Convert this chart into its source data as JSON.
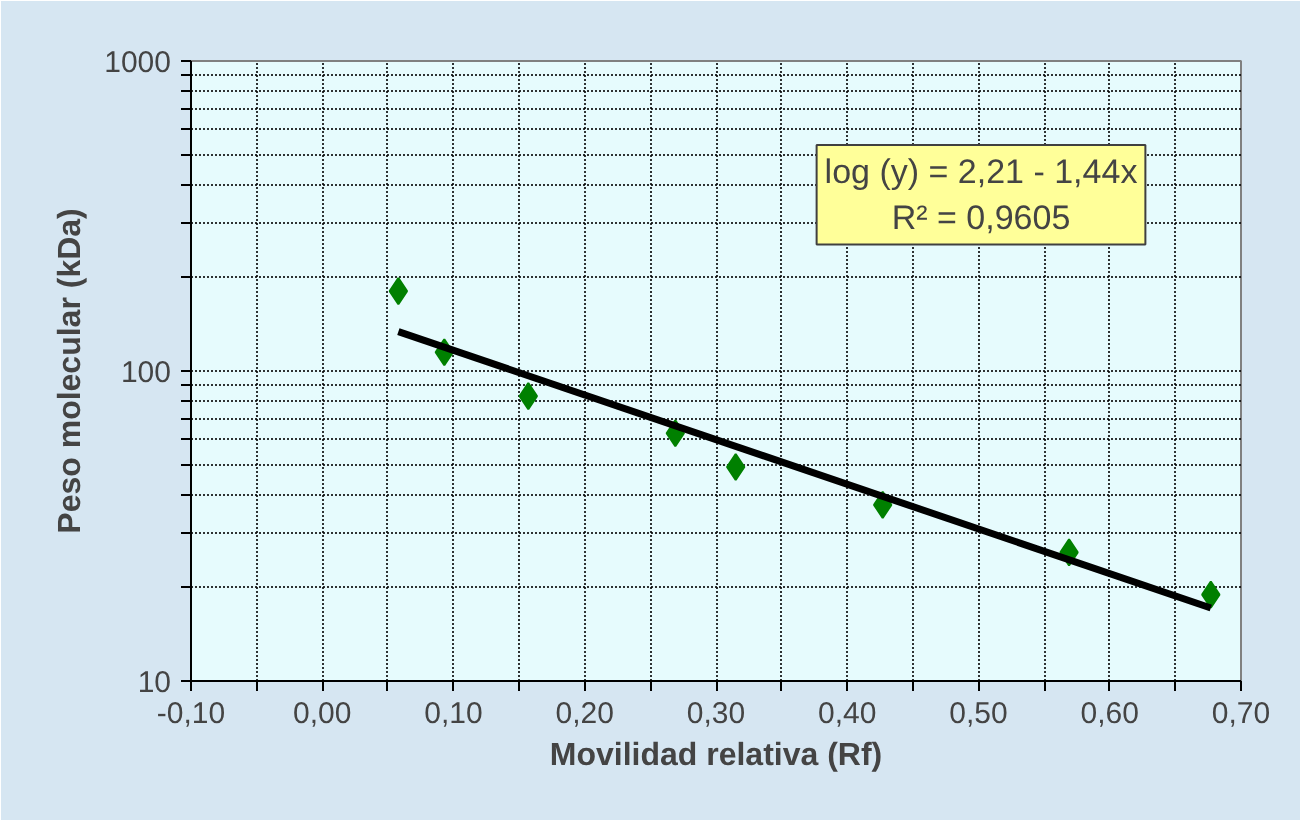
{
  "chart_data": {
    "type": "scatter",
    "xlabel": "Movilidad relativa (Rf)",
    "ylabel": "Peso molecular (kDa)",
    "series": [
      {
        "color": "#008000",
        "marker": "diamond",
        "x": [
          0.058,
          0.093,
          0.157,
          0.269,
          0.315,
          0.427,
          0.569,
          0.677
        ],
        "values": [
          181,
          115,
          83,
          63,
          49,
          37,
          26,
          19
        ]
      },
      {
        "type": "line",
        "color": "#000000",
        "x": [
          0.058,
          0.677
        ],
        "values": [
          134,
          17.2
        ]
      }
    ],
    "log": "y",
    "xlim": [
      -0.1,
      0.7
    ],
    "ylim": [
      10,
      1000
    ],
    "xticks": [
      {
        "value": -0.1,
        "label": "-0,10"
      },
      {
        "value": -0.05,
        "label": null
      },
      {
        "value": 0,
        "label": "0,00"
      },
      {
        "value": 0.05,
        "label": null
      },
      {
        "value": 0.1,
        "label": "0,10"
      },
      {
        "value": 0.15,
        "label": null
      },
      {
        "value": 0.2,
        "label": "0,20"
      },
      {
        "value": 0.25,
        "label": null
      },
      {
        "value": 0.3,
        "label": "0,30"
      },
      {
        "value": 0.35,
        "label": null
      },
      {
        "value": 0.4,
        "label": "0,40"
      },
      {
        "value": 0.45,
        "label": null
      },
      {
        "value": 0.5,
        "label": "0,50"
      },
      {
        "value": 0.55,
        "label": null
      },
      {
        "value": 0.6,
        "label": "0,60"
      },
      {
        "value": 0.65,
        "label": null
      },
      {
        "value": 0.7,
        "label": "0,70"
      }
    ],
    "yticks": [
      10,
      {
        "value": 20,
        "label": null
      },
      {
        "value": 30,
        "label": null
      },
      {
        "value": 40,
        "label": null
      },
      {
        "value": 50,
        "label": null
      },
      {
        "value": 60,
        "label": null
      },
      {
        "value": 70,
        "label": null
      },
      {
        "value": 80,
        "label": null
      },
      {
        "value": 90,
        "label": null
      },
      100,
      {
        "value": 200,
        "label": null
      },
      {
        "value": 300,
        "label": null
      },
      {
        "value": 400,
        "label": null
      },
      {
        "value": 500,
        "label": null
      },
      {
        "value": 600,
        "label": null
      },
      {
        "value": 700,
        "label": null
      },
      {
        "value": 800,
        "label": null
      },
      {
        "value": 900,
        "label": null
      },
      1000
    ],
    "grid": true,
    "annotations": [
      "log (y) = 2,21 - 1,44x\nR² = 0,9605"
    ]
  }
}
